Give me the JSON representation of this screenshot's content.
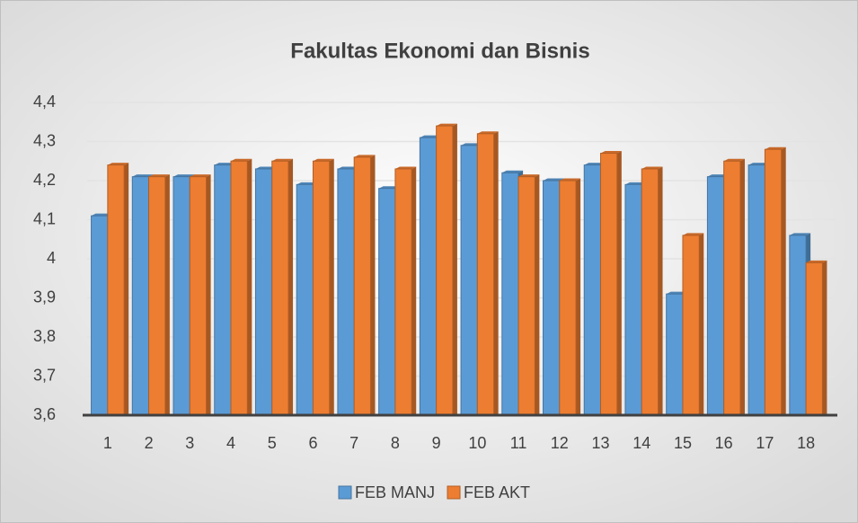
{
  "chart_data": {
    "type": "bar",
    "title": "Fakultas Ekonomi dan Bisnis",
    "categories": [
      "1",
      "2",
      "3",
      "4",
      "5",
      "6",
      "7",
      "8",
      "9",
      "10",
      "11",
      "12",
      "13",
      "14",
      "15",
      "16",
      "17",
      "18"
    ],
    "series": [
      {
        "name": "FEB MANJ",
        "color": "#5b9bd5",
        "values": [
          4.11,
          4.21,
          4.21,
          4.24,
          4.23,
          4.19,
          4.23,
          4.18,
          4.31,
          4.29,
          4.22,
          4.2,
          4.24,
          4.19,
          3.91,
          4.21,
          4.24,
          4.06
        ]
      },
      {
        "name": "FEB AKT",
        "color": "#ed7d31",
        "values": [
          4.24,
          4.21,
          4.21,
          4.25,
          4.25,
          4.25,
          4.26,
          4.23,
          4.34,
          4.32,
          4.21,
          4.2,
          4.27,
          4.23,
          4.06,
          4.25,
          4.28,
          3.99
        ]
      }
    ],
    "ylim": [
      3.6,
      4.4
    ],
    "yticks": [
      {
        "value": 3.6,
        "label": "3,6"
      },
      {
        "value": 3.7,
        "label": "3,7"
      },
      {
        "value": 3.8,
        "label": "3,8"
      },
      {
        "value": 3.9,
        "label": "3,9"
      },
      4,
      {
        "value": 4.1,
        "label": "4,1"
      },
      {
        "value": 4.2,
        "label": "4,2"
      },
      {
        "value": 4.3,
        "label": "4,3"
      },
      {
        "value": 4.4,
        "label": "4,4"
      }
    ],
    "grid": true,
    "legend": "bottom"
  }
}
